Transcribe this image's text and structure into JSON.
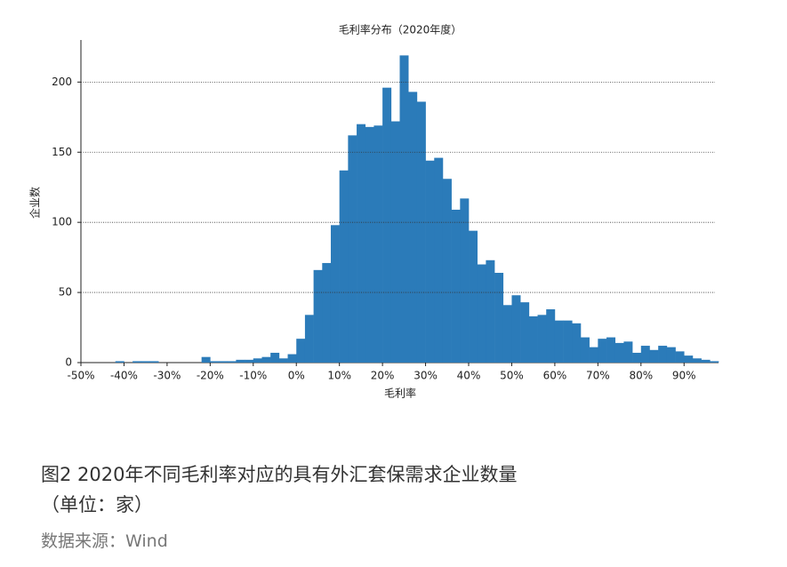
{
  "chart_data": {
    "type": "histogram",
    "title": "毛利率分布（2020年度）",
    "xlabel": "毛利率",
    "ylabel": "企业数",
    "bins": [
      -50,
      -48,
      -46,
      -44,
      -42,
      -40,
      -38,
      -36,
      -34,
      -32,
      -30,
      -28,
      -26,
      -24,
      -22,
      -20,
      -18,
      -16,
      -14,
      -12,
      -10,
      -8,
      -6,
      -4,
      -2,
      0,
      2,
      4,
      6,
      8,
      10,
      12,
      14,
      16,
      18,
      20,
      22,
      24,
      26,
      28,
      30,
      32,
      34,
      36,
      38,
      40,
      42,
      44,
      46,
      48,
      50,
      52,
      54,
      56,
      58,
      60,
      62,
      64,
      66,
      68,
      70,
      72,
      74,
      76,
      78,
      80,
      82,
      84,
      86,
      88,
      90,
      92,
      94,
      96,
      98
    ],
    "counts": [
      0,
      0,
      0,
      0,
      1,
      0,
      1,
      1,
      1,
      0,
      0,
      0,
      0,
      0,
      4,
      1,
      1,
      1,
      2,
      2,
      3,
      4,
      7,
      3,
      6,
      17,
      34,
      66,
      71,
      98,
      137,
      162,
      170,
      168,
      169,
      196,
      172,
      219,
      193,
      186,
      144,
      146,
      131,
      109,
      117,
      94,
      70,
      73,
      64,
      41,
      48,
      43,
      33,
      34,
      38,
      30,
      30,
      28,
      18,
      11,
      17,
      18,
      14,
      15,
      7,
      12,
      9,
      12,
      11,
      8,
      5,
      3,
      2,
      1
    ],
    "color": "#2b7bb9",
    "xlim": [
      -50,
      98
    ],
    "ylim": [
      0,
      230
    ],
    "xticks": [
      {
        "value": -50,
        "label": "-50%"
      },
      {
        "value": -40,
        "label": "-40%"
      },
      {
        "value": -30,
        "label": "-30%"
      },
      {
        "value": -20,
        "label": "-20%"
      },
      {
        "value": -10,
        "label": "-10%"
      },
      {
        "value": 0,
        "label": "0%"
      },
      {
        "value": 10,
        "label": "10%"
      },
      {
        "value": 20,
        "label": "20%"
      },
      {
        "value": 30,
        "label": "30%"
      },
      {
        "value": 40,
        "label": "40%"
      },
      {
        "value": 50,
        "label": "50%"
      },
      {
        "value": 60,
        "label": "60%"
      },
      {
        "value": 70,
        "label": "70%"
      },
      {
        "value": 80,
        "label": "80%"
      },
      {
        "value": 90,
        "label": "90%"
      }
    ],
    "yticks": [
      0,
      50,
      100,
      150,
      200
    ],
    "grid": true
  },
  "caption": {
    "title": "图2 2020年不同毛利率对应的具有外汇套保需求企业数量",
    "unit": "（单位：家）",
    "source": "数据来源：Wind"
  }
}
